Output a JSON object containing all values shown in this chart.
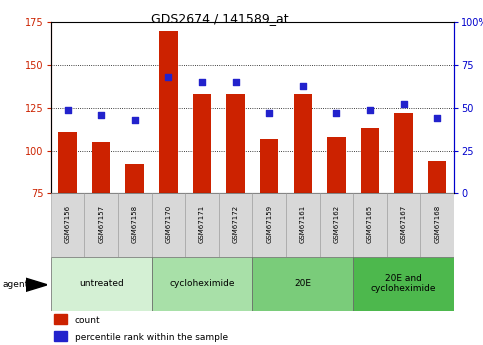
{
  "title": "GDS2674 / 141589_at",
  "samples": [
    "GSM67156",
    "GSM67157",
    "GSM67158",
    "GSM67170",
    "GSM67171",
    "GSM67172",
    "GSM67159",
    "GSM67161",
    "GSM67162",
    "GSM67165",
    "GSM67167",
    "GSM67168"
  ],
  "counts": [
    111,
    105,
    92,
    170,
    133,
    133,
    107,
    133,
    108,
    113,
    122,
    94
  ],
  "percentile_ranks": [
    49,
    46,
    43,
    68,
    65,
    65,
    47,
    63,
    47,
    49,
    52,
    44
  ],
  "ylim_left": [
    75,
    175
  ],
  "ylim_right": [
    0,
    100
  ],
  "yticks_left": [
    75,
    100,
    125,
    150,
    175
  ],
  "yticks_right": [
    0,
    25,
    50,
    75,
    100
  ],
  "groups": [
    {
      "label": "untreated",
      "start": 0,
      "end": 3
    },
    {
      "label": "cycloheximide",
      "start": 3,
      "end": 6
    },
    {
      "label": "20E",
      "start": 6,
      "end": 9
    },
    {
      "label": "20E and\ncycloheximide",
      "start": 9,
      "end": 12
    }
  ],
  "group_colors": [
    "#d4f0d4",
    "#a8e0a8",
    "#7acc7a",
    "#4db84d"
  ],
  "bar_color": "#cc2200",
  "dot_color": "#2222cc",
  "bar_width": 0.55,
  "background_color": "#ffffff",
  "left_tick_color": "#cc2200",
  "right_tick_color": "#0000cc",
  "sample_box_color": "#d8d8d8",
  "title_fontsize": 9,
  "tick_fontsize": 7,
  "label_fontsize": 6,
  "group_fontsize": 6.5
}
